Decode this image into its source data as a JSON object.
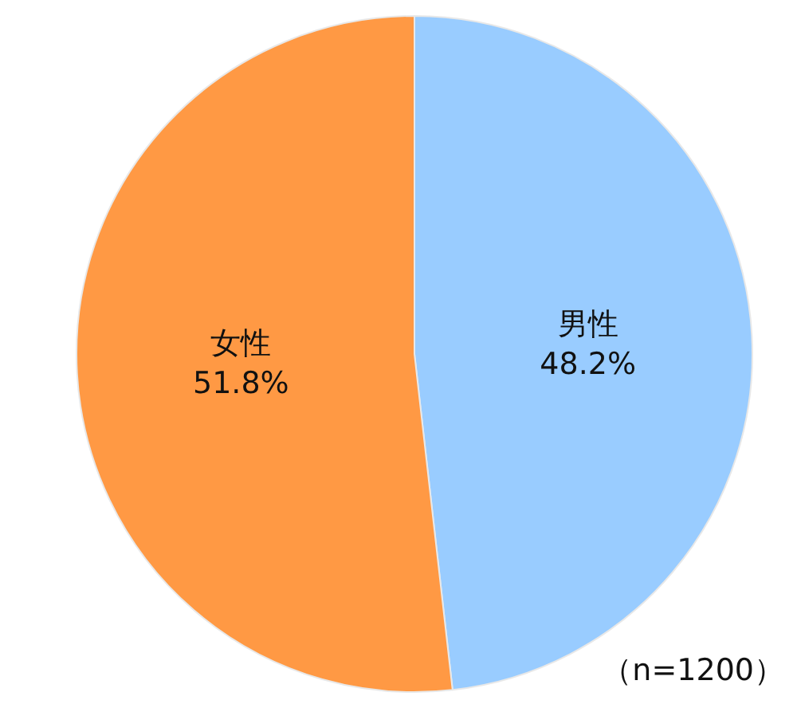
{
  "chart_data": {
    "type": "pie",
    "categories": [
      "男性",
      "女性"
    ],
    "values": [
      48.2,
      51.8
    ],
    "colors": [
      "#99ccff",
      "#ff9944"
    ],
    "value_labels": [
      "48.2%",
      "51.8%"
    ],
    "annotations": [
      "（n=1200）"
    ]
  }
}
